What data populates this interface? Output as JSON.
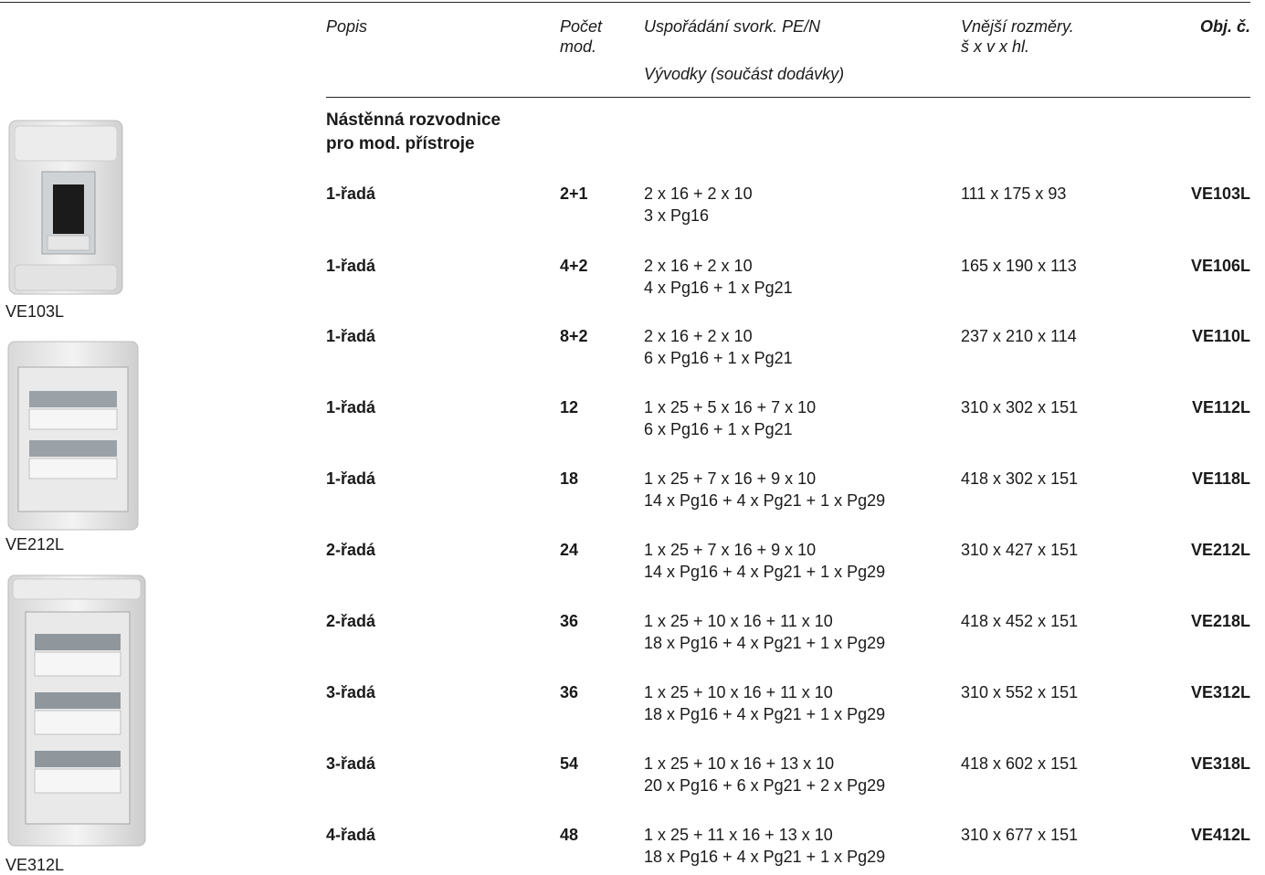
{
  "header": {
    "popis": "Popis",
    "pocet_mod": "Počet\nmod.",
    "usporadani": "Uspořádání svork. PE/N",
    "vyvodky": "Vývodky (součást dodávky)",
    "vnejsi_rozmery": "Vnější rozměry.\nš x v x hl.",
    "obj_c": "Obj. č."
  },
  "section": {
    "title_line1": "Nástěnná rozvodnice",
    "title_line2": "pro mod. přístroje"
  },
  "rows": [
    {
      "popis": "1-řadá",
      "pocet": "2+1",
      "svorky": "2 x 16 + 2 x 10",
      "vyvodky": "3 x Pg16",
      "rozmery": "111 x 175 x 93",
      "obj": "VE103L"
    },
    {
      "popis": "1-řadá",
      "pocet": "4+2",
      "svorky": "2 x 16 + 2 x 10",
      "vyvodky": "4 x Pg16 + 1 x Pg21",
      "rozmery": "165 x 190 x 113",
      "obj": "VE106L"
    },
    {
      "popis": "1-řadá",
      "pocet": "8+2",
      "svorky": "2 x 16 + 2 x 10",
      "vyvodky": "6 x Pg16 + 1 x Pg21",
      "rozmery": "237 x 210 x 114",
      "obj": "VE110L"
    },
    {
      "popis": "1-řadá",
      "pocet": "12",
      "svorky": "1 x 25 + 5 x 16 + 7 x 10",
      "vyvodky": "6 x Pg16 + 1 x Pg21",
      "rozmery": "310 x 302 x 151",
      "obj": "VE112L"
    },
    {
      "popis": "1-řadá",
      "pocet": "18",
      "svorky": "1 x 25 + 7 x 16 + 9 x 10",
      "vyvodky": "14 x Pg16 + 4 x Pg21 + 1 x Pg29",
      "rozmery": "418 x 302 x 151",
      "obj": "VE118L"
    },
    {
      "popis": "2-řadá",
      "pocet": "24",
      "svorky": "1 x 25 + 7 x 16 + 9 x 10",
      "vyvodky": "14 x Pg16 + 4 x Pg21 + 1 x Pg29",
      "rozmery": "310 x 427 x 151",
      "obj": "VE212L"
    },
    {
      "popis": "2-řadá",
      "pocet": "36",
      "svorky": "1 x 25 + 10 x 16 + 11 x 10",
      "vyvodky": "18 x Pg16 + 4 x Pg21 + 1 x Pg29",
      "rozmery": "418 x 452 x 151",
      "obj": "VE218L"
    },
    {
      "popis": "3-řadá",
      "pocet": "36",
      "svorky": "1 x 25 + 10 x 16 + 11 x 10",
      "vyvodky": "18 x Pg16 + 4 x Pg21 + 1 x Pg29",
      "rozmery": "310 x 552 x 151",
      "obj": "VE312L"
    },
    {
      "popis": "3-řadá",
      "pocet": "54",
      "svorky": "1 x 25 + 10 x 16 + 13 x 10",
      "vyvodky": "20 x Pg16 + 6 x Pg21 + 2 x Pg29",
      "rozmery": "418 x 602 x 151",
      "obj": "VE318L"
    },
    {
      "popis": "4-řadá",
      "pocet": "48",
      "svorky": "1 x 25 + 11 x 16 + 13 x 10",
      "vyvodky": "18 x Pg16 + 4 x Pg21 + 1 x Pg29",
      "rozmery": "310 x 677 x 151",
      "obj": "VE412L"
    }
  ],
  "images": [
    {
      "caption": "VE103L"
    },
    {
      "caption": "VE212L"
    },
    {
      "caption": "VE312L"
    }
  ]
}
